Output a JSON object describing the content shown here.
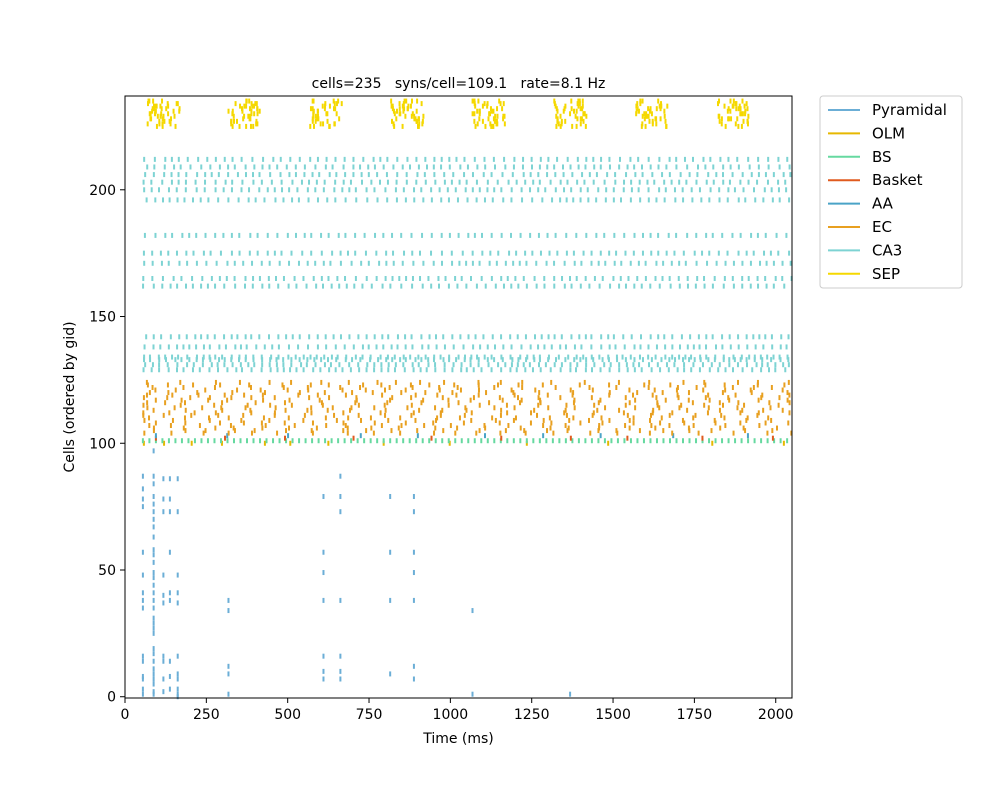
{
  "chart_data": {
    "type": "scatter",
    "title": "cells=235   syns/cell=109.1   rate=8.1 Hz",
    "xlabel": "Time (ms)",
    "ylabel": "Cells (ordered by gid)",
    "xlim": [
      0,
      2050
    ],
    "ylim": [
      -0.5,
      237
    ],
    "xticks": [
      0,
      250,
      500,
      750,
      1000,
      1250,
      1500,
      1750,
      2000
    ],
    "yticks": [
      0,
      50,
      100,
      150,
      200
    ],
    "grid": false,
    "legend_position": "outside-top-right",
    "series": [
      {
        "name": "Pyramidal",
        "color": "#6baed6",
        "gid_range": [
          0,
          100
        ],
        "spikes": {
          "times": [
            55,
            55,
            55,
            55,
            55,
            55,
            55,
            55,
            55,
            55,
            55,
            55,
            55,
            55,
            55,
            88,
            88,
            88,
            88,
            88,
            88,
            88,
            88,
            88,
            88,
            88,
            88,
            88,
            88,
            88,
            88,
            88,
            88,
            88,
            88,
            88,
            88,
            88,
            88,
            88,
            88,
            88,
            88,
            88,
            88,
            88,
            118,
            118,
            118,
            118,
            118,
            118,
            118,
            118,
            118,
            118,
            138,
            138,
            138,
            138,
            138,
            138,
            138,
            138,
            138,
            162,
            162,
            162,
            162,
            162,
            162,
            162,
            162,
            162,
            162,
            162,
            318,
            318,
            318,
            318,
            318,
            610,
            610,
            610,
            610,
            610,
            610,
            610,
            662,
            662,
            662,
            662,
            662,
            662,
            662,
            815,
            815,
            815,
            815,
            888,
            888,
            888,
            888,
            888,
            888,
            888,
            1068,
            1068,
            1368
          ],
          "gids": [
            1,
            3,
            7,
            8,
            14,
            16,
            35,
            38,
            41,
            48,
            57,
            75,
            78,
            82,
            87,
            1,
            2,
            5,
            7,
            9,
            11,
            14,
            17,
            19,
            25,
            27,
            29,
            31,
            35,
            38,
            41,
            44,
            47,
            49,
            53,
            56,
            58,
            63,
            67,
            70,
            73,
            76,
            79,
            84,
            87,
            97,
            2,
            7,
            14,
            16,
            37,
            40,
            48,
            73,
            78,
            86,
            3,
            8,
            14,
            38,
            41,
            57,
            73,
            78,
            86,
            0,
            1,
            3,
            7,
            9,
            16,
            37,
            41,
            48,
            73,
            86,
            1,
            9,
            12,
            34,
            38,
            7,
            10,
            16,
            38,
            49,
            57,
            79,
            7,
            10,
            16,
            38,
            73,
            79,
            87,
            9,
            38,
            57,
            79,
            7,
            12,
            38,
            49,
            57,
            73,
            79,
            1,
            34,
            1
          ]
        }
      },
      {
        "name": "OLM",
        "color": "#e6b800",
        "gid_range": [
          100,
          101
        ],
        "spikes": {
          "times": [
            58,
            120,
            205,
            298,
            430,
            508,
            625,
            795,
            998,
            1235,
            1485,
            1805,
            2025
          ],
          "gids": [
            100,
            100,
            100,
            100,
            100,
            100,
            100,
            100,
            100,
            100,
            100,
            100,
            100
          ]
        }
      },
      {
        "name": "BS",
        "color": "#66d9a0",
        "gid_range": [
          101,
          102
        ],
        "pattern": {
          "period_ms": 20,
          "start_ms": 55,
          "end_ms": 2050
        }
      },
      {
        "name": "Basket",
        "color": "#e05a1e",
        "gid_range": [
          102,
          103
        ],
        "pattern": {
          "start_ms": 55,
          "end_ms": 2050
        }
      },
      {
        "name": "AA",
        "color": "#4aa3c7",
        "gid_range": [
          103,
          104
        ],
        "pattern": {
          "start_ms": 55,
          "end_ms": 2050
        }
      },
      {
        "name": "EC",
        "color": "#e8a020",
        "gid_range": [
          104,
          124
        ],
        "pattern": {
          "rate_hz": 12,
          "start_ms": 55,
          "end_ms": 2050
        }
      },
      {
        "name": "CA3",
        "color": "#7dd3d3",
        "gid_range": [
          128,
          213
        ],
        "pattern": {
          "active_gids": [
            129,
            131,
            133,
            134,
            138,
            142,
            162,
            165,
            171,
            175,
            182,
            196,
            200,
            203,
            206,
            209,
            212
          ],
          "start_ms": 55,
          "end_ms": 2050
        }
      },
      {
        "name": "SEP",
        "color": "#f5d800",
        "gid_range": [
          225,
          235
        ],
        "pattern": {
          "burst_centers_ms": [
            118,
            368,
            618,
            868,
            1118,
            1368,
            1618,
            1868
          ],
          "burst_width_ms": 100
        }
      }
    ]
  }
}
